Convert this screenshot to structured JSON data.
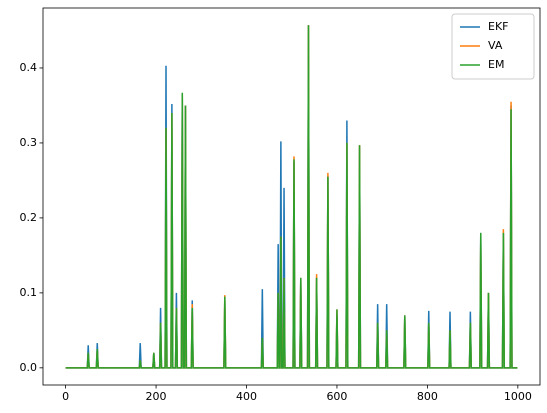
{
  "chart_data": {
    "type": "line",
    "x": [
      0,
      48,
      50,
      52,
      68,
      70,
      72,
      163,
      165,
      167,
      193,
      195,
      197,
      208,
      210,
      212,
      220,
      222,
      224,
      233,
      235,
      237,
      243,
      245,
      247,
      256,
      258,
      260,
      263,
      265,
      267,
      278,
      280,
      282,
      350,
      352,
      354,
      433,
      435,
      437,
      468,
      470,
      472,
      474,
      476,
      478,
      481,
      483,
      485,
      503,
      505,
      507,
      518,
      520,
      522,
      535,
      537,
      539,
      553,
      555,
      557,
      578,
      580,
      582,
      598,
      600,
      602,
      620,
      622,
      624,
      648,
      650,
      652,
      688,
      690,
      692,
      708,
      710,
      712,
      748,
      750,
      752,
      801,
      803,
      805,
      848,
      850,
      852,
      893,
      895,
      897,
      916,
      918,
      920,
      933,
      935,
      937,
      966,
      968,
      970,
      983,
      985,
      987,
      999
    ],
    "series": [
      {
        "name": "EKF",
        "color": "#1f77b4",
        "values": [
          0,
          0,
          0.03,
          0,
          0,
          0.033,
          0,
          0,
          0.033,
          0,
          0,
          0.02,
          0,
          0,
          0.08,
          0,
          0,
          0.403,
          0,
          0,
          0.352,
          0,
          0,
          0.1,
          0,
          0,
          0.36,
          0,
          0,
          0.35,
          0,
          0,
          0.09,
          0,
          0,
          0.09,
          0,
          0,
          0.105,
          0,
          0,
          0.165,
          0,
          0,
          0.302,
          0,
          0,
          0.24,
          0,
          0,
          0.275,
          0,
          0,
          0.12,
          0,
          0,
          0.457,
          0,
          0,
          0.12,
          0,
          0,
          0.255,
          0,
          0,
          0.07,
          0,
          0,
          0.33,
          0,
          0,
          0.295,
          0,
          0,
          0.085,
          0,
          0,
          0.085,
          0,
          0,
          0.07,
          0,
          0,
          0.076,
          0,
          0,
          0.075,
          0,
          0,
          0.075,
          0,
          0,
          0.18,
          0,
          0,
          0.1,
          0,
          0,
          0.18,
          0,
          0,
          0.35,
          0,
          0
        ]
      },
      {
        "name": "VA",
        "color": "#ff7f0e",
        "values": [
          0,
          0,
          0.02,
          0,
          0,
          0.025,
          0,
          0,
          0.01,
          0,
          0,
          0.02,
          0,
          0,
          0.06,
          0,
          0,
          0.32,
          0,
          0,
          0.34,
          0,
          0,
          0.08,
          0,
          0,
          0.365,
          0,
          0,
          0.35,
          0,
          0,
          0.085,
          0,
          0,
          0.097,
          0,
          0,
          0.04,
          0,
          0,
          0.1,
          0,
          0,
          0.175,
          0,
          0,
          0.12,
          0,
          0,
          0.282,
          0,
          0,
          0.12,
          0,
          0,
          0.457,
          0,
          0,
          0.125,
          0,
          0,
          0.26,
          0,
          0,
          0.078,
          0,
          0,
          0.3,
          0,
          0,
          0.297,
          0,
          0,
          0.06,
          0,
          0,
          0.05,
          0,
          0,
          0.07,
          0,
          0,
          0.06,
          0,
          0,
          0.05,
          0,
          0,
          0.06,
          0,
          0,
          0.17,
          0,
          0,
          0.1,
          0,
          0,
          0.185,
          0,
          0,
          0.355,
          0,
          0
        ]
      },
      {
        "name": "EM",
        "color": "#2ca02c",
        "values": [
          0,
          0,
          0.02,
          0,
          0,
          0.025,
          0,
          0,
          0.01,
          0,
          0,
          0.02,
          0,
          0,
          0.06,
          0,
          0,
          0.32,
          0,
          0,
          0.34,
          0,
          0,
          0.08,
          0,
          0,
          0.367,
          0,
          0,
          0.35,
          0,
          0,
          0.08,
          0,
          0,
          0.095,
          0,
          0,
          0.04,
          0,
          0,
          0.1,
          0,
          0,
          0.175,
          0,
          0,
          0.12,
          0,
          0,
          0.278,
          0,
          0,
          0.12,
          0,
          0,
          0.457,
          0,
          0,
          0.12,
          0,
          0,
          0.255,
          0,
          0,
          0.078,
          0,
          0,
          0.3,
          0,
          0,
          0.297,
          0,
          0,
          0.06,
          0,
          0,
          0.05,
          0,
          0,
          0.07,
          0,
          0,
          0.06,
          0,
          0,
          0.05,
          0,
          0,
          0.06,
          0,
          0,
          0.18,
          0,
          0,
          0.1,
          0,
          0,
          0.18,
          0,
          0,
          0.345,
          0,
          0
        ]
      }
    ],
    "xlim": [
      -50,
      1049
    ],
    "ylim": [
      -0.0229,
      0.48
    ],
    "xticks": [
      0,
      200,
      400,
      600,
      800,
      1000
    ],
    "yticks": [
      {
        "value": 0,
        "label": "0.0"
      },
      0.1,
      0.2,
      0.3,
      0.4
    ],
    "legend": "upper right"
  }
}
